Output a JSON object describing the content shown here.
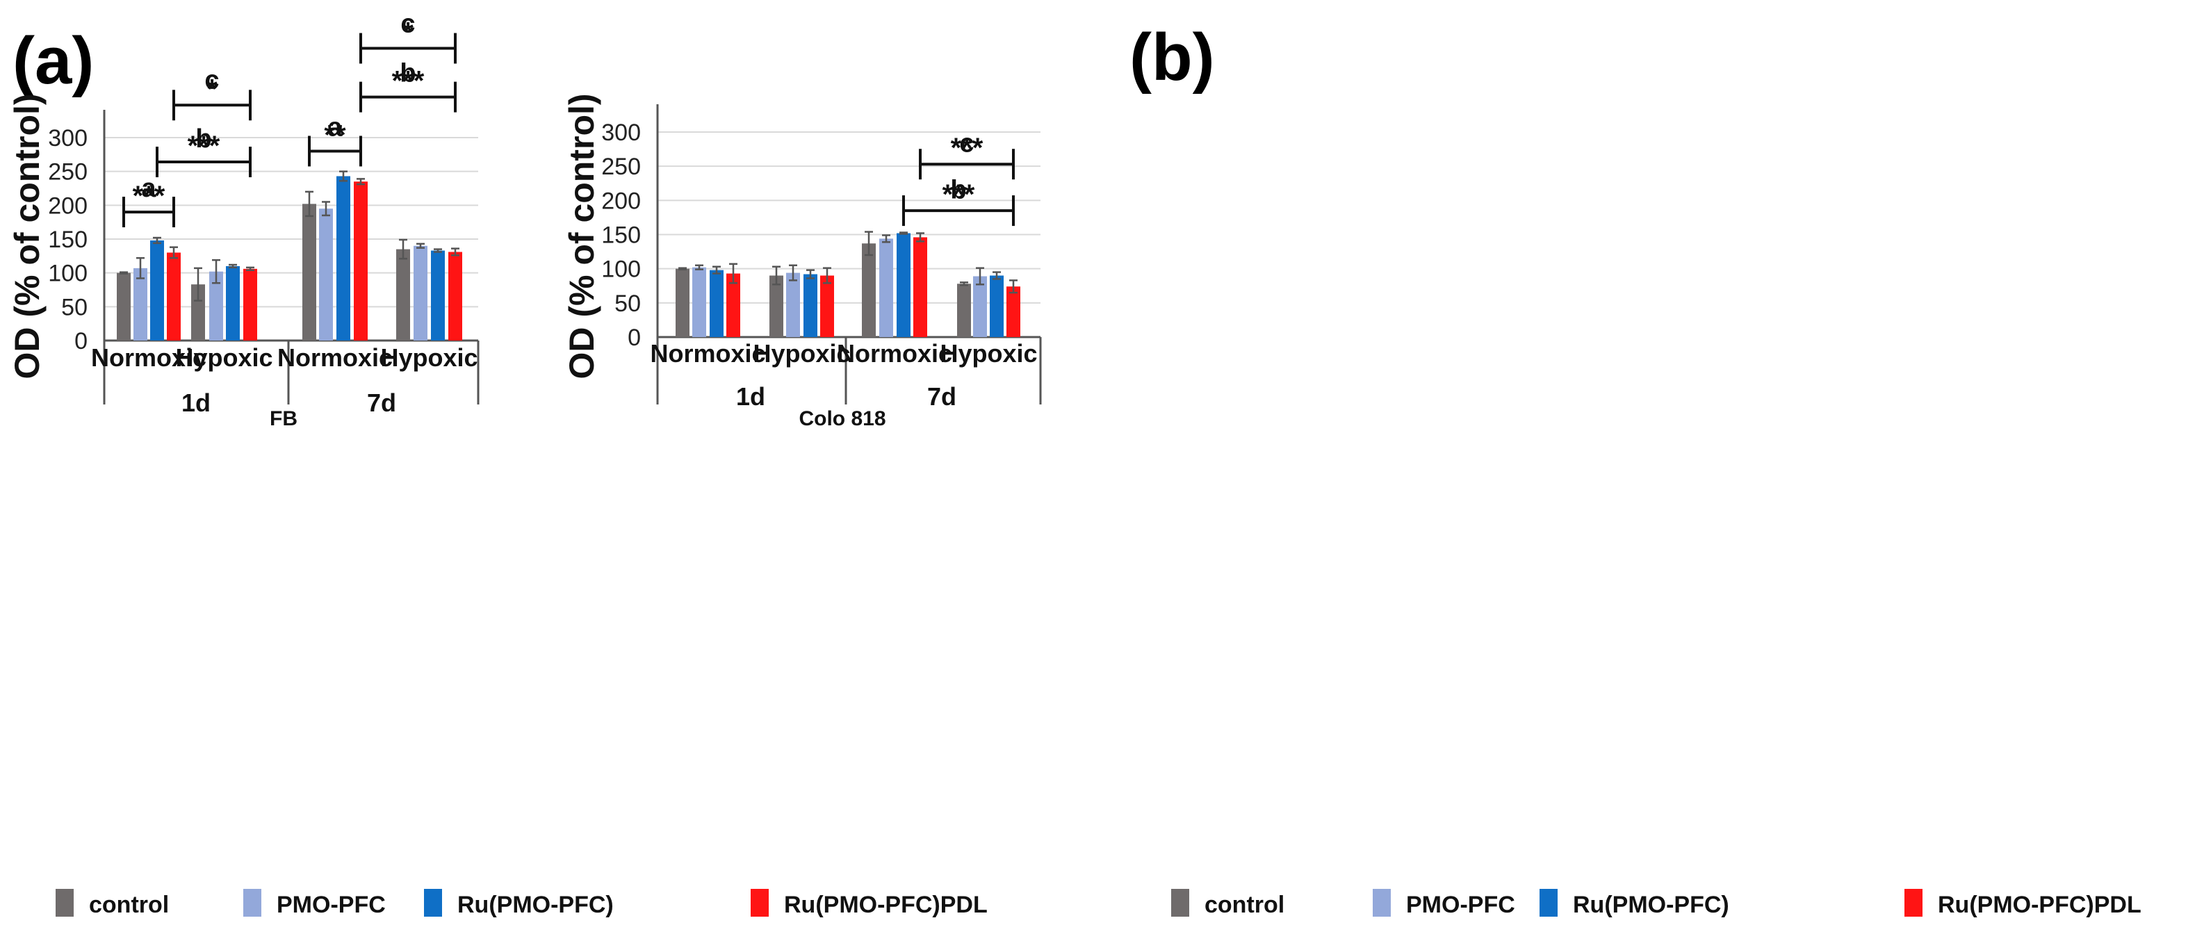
{
  "colors": {
    "control": "#6f6b6b",
    "PMO-PFC": "#93a8da",
    "Ru(PMO-PFC)": "#0f6fc6",
    "Ru(PMO-PFC)PDL": "#ff1414"
  },
  "legend": [
    "control",
    "PMO-PFC",
    "Ru(PMO-PFC)",
    "Ru(PMO-PFC)PDL"
  ],
  "chart_data": [
    {
      "type": "bar",
      "panel": "(a)",
      "ylabel": "OD (% of control)",
      "xlabel": "FB",
      "ylim": [
        0,
        300
      ],
      "yticks": [
        0,
        50,
        100,
        150,
        200,
        250,
        300
      ],
      "days": [
        "1d",
        "7d"
      ],
      "categories": [
        "Normoxic",
        "Hypoxic",
        "Normoxic",
        "Hypoxic"
      ],
      "category_day": [
        "1d",
        "1d",
        "7d",
        "7d"
      ],
      "series": [
        {
          "name": "control",
          "values": [
            100,
            83,
            202,
            135
          ],
          "errors": [
            1,
            24,
            18,
            14
          ]
        },
        {
          "name": "PMO-PFC",
          "values": [
            107,
            102,
            195,
            140
          ],
          "errors": [
            15,
            17,
            10,
            3
          ]
        },
        {
          "name": "Ru(PMO-PFC)",
          "values": [
            148,
            110,
            243,
            133
          ],
          "errors": [
            4,
            2,
            7,
            2
          ]
        },
        {
          "name": "Ru(PMO-PFC)PDL",
          "values": [
            130,
            106,
            235,
            131
          ],
          "errors": [
            8,
            2,
            4,
            5
          ]
        }
      ],
      "significance": [
        {
          "letter": "a",
          "stars": "***",
          "from_group": 0,
          "from_series": 0,
          "to_group": 0,
          "to_series": 3,
          "y": 190,
          "label_y": 225
        },
        {
          "letter": "b",
          "stars": "***",
          "from_group": 0,
          "from_series": 2,
          "to_group": 1,
          "to_series": 3,
          "y": 264,
          "label_y": 298
        },
        {
          "letter": "c",
          "stars": "*",
          "from_group": 0,
          "from_series": 3,
          "to_group": 1,
          "to_series": 3,
          "y": 348,
          "label_y": 385
        },
        {
          "letter": "a",
          "stars": "**",
          "from_group": 2,
          "from_series": 0,
          "to_group": 2,
          "to_series": 3,
          "y": 280,
          "label_y": 315
        },
        {
          "letter": "b",
          "stars": "***",
          "from_group": 2,
          "from_series": 3,
          "to_group": 3,
          "to_series": 3,
          "y": 360,
          "label_y": 395
        },
        {
          "letter": "c",
          "stars": "*",
          "from_group": 2,
          "from_series": 3,
          "to_group": 3,
          "to_series": 3,
          "y": 432,
          "label_y": 468
        }
      ]
    },
    {
      "type": "bar",
      "panel": "(b)",
      "ylabel": "OD (% of control)",
      "xlabel": "Colo 818",
      "ylim": [
        0,
        300
      ],
      "yticks": [
        0,
        50,
        100,
        150,
        200,
        250,
        300
      ],
      "days": [
        "1d",
        "7d"
      ],
      "categories": [
        "Normoxic",
        "Hypoxic",
        "Normoxic",
        "Hypoxic"
      ],
      "category_day": [
        "1d",
        "1d",
        "7d",
        "7d"
      ],
      "series": [
        {
          "name": "control",
          "values": [
            100,
            90,
            137,
            78
          ],
          "errors": [
            1,
            13,
            17,
            2
          ]
        },
        {
          "name": "PMO-PFC",
          "values": [
            102,
            94,
            144,
            89
          ],
          "errors": [
            3,
            11,
            5,
            12
          ]
        },
        {
          "name": "Ru(PMO-PFC)",
          "values": [
            98,
            92,
            152,
            90
          ],
          "errors": [
            5,
            6,
            1,
            5
          ]
        },
        {
          "name": "Ru(PMO-PFC)PDL",
          "values": [
            93,
            90,
            146,
            74
          ],
          "errors": [
            14,
            11,
            6,
            9
          ]
        }
      ],
      "significance": [
        {
          "letter": "b",
          "stars": "***",
          "from_group": 2,
          "from_series": 2,
          "to_group": 3,
          "to_series": 3,
          "y": 185,
          "label_y": 215
        },
        {
          "letter": "c",
          "stars": "***",
          "from_group": 2,
          "from_series": 3,
          "to_group": 3,
          "to_series": 3,
          "y": 253,
          "label_y": 283
        }
      ]
    }
  ]
}
